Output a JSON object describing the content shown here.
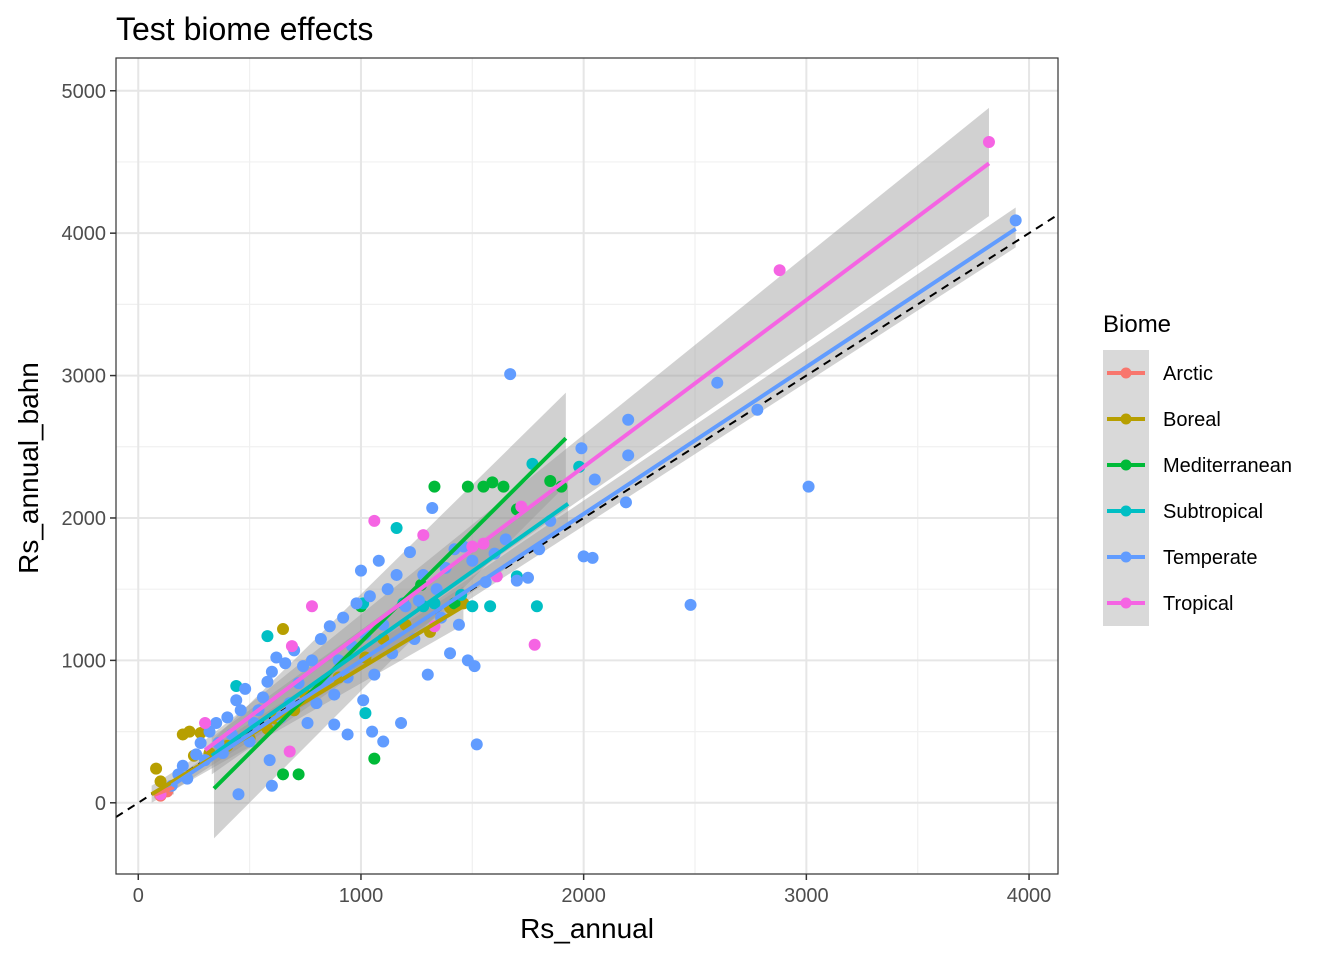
{
  "chart_data": {
    "type": "scatter",
    "title": "Test biome effects",
    "xlabel": "Rs_annual",
    "ylabel": "Rs_annual_bahn",
    "xlim": [
      -100,
      4130
    ],
    "ylim": [
      -500,
      5230
    ],
    "x_ticks": [
      0,
      1000,
      2000,
      3000,
      4000
    ],
    "y_ticks": [
      0,
      1000,
      2000,
      3000,
      4000,
      5000
    ],
    "x_tick_labels": [
      "0",
      "1000",
      "2000",
      "3000",
      "4000"
    ],
    "y_tick_labels": [
      "0",
      "1000",
      "2000",
      "3000",
      "4000",
      "5000"
    ],
    "grid": true,
    "legend": {
      "title": "Biome",
      "position": "right"
    },
    "reference_line": {
      "type": "identity",
      "style": "dashed",
      "color": "#000000"
    },
    "series": [
      {
        "name": "Arctic",
        "color": "#F8766D",
        "points": [
          [
            100,
            50
          ],
          [
            130,
            80
          ]
        ],
        "fit": {
          "x": [
            70,
            160
          ],
          "y": [
            55,
            110
          ],
          "lo": [
            30,
            60
          ],
          "hi": [
            80,
            160
          ]
        }
      },
      {
        "name": "Boreal",
        "color": "#B79F00",
        "points": [
          [
            80,
            240
          ],
          [
            100,
            150
          ],
          [
            200,
            480
          ],
          [
            230,
            500
          ],
          [
            280,
            490
          ],
          [
            320,
            350
          ],
          [
            400,
            400
          ],
          [
            500,
            450
          ],
          [
            650,
            1220
          ],
          [
            620,
            590
          ],
          [
            700,
            650
          ],
          [
            750,
            760
          ],
          [
            900,
            880
          ],
          [
            1100,
            1150
          ],
          [
            1200,
            1250
          ],
          [
            1310,
            1200
          ],
          [
            1400,
            1370
          ],
          [
            1460,
            1400
          ],
          [
            1020,
            1020
          ],
          [
            580,
            520
          ],
          [
            250,
            330
          ]
        ],
        "fit": {
          "x": [
            60,
            1460
          ],
          "y": [
            60,
            1380
          ],
          "lo": [
            0,
            1250
          ],
          "hi": [
            120,
            1520
          ]
        }
      },
      {
        "name": "Mediterranean",
        "color": "#00BA38",
        "points": [
          [
            650,
            200
          ],
          [
            720,
            200
          ],
          [
            1060,
            310
          ],
          [
            1000,
            1380
          ],
          [
            1330,
            2220
          ],
          [
            1480,
            2220
          ],
          [
            1550,
            2220
          ],
          [
            1590,
            2250
          ],
          [
            1640,
            2220
          ],
          [
            1700,
            2060
          ],
          [
            1850,
            2260
          ],
          [
            1900,
            2220
          ],
          [
            1270,
            1530
          ],
          [
            1420,
            1400
          ]
        ],
        "fit": {
          "x": [
            340,
            1920
          ],
          "y": [
            100,
            2560
          ],
          "lo": [
            -250,
            2230
          ],
          "hi": [
            450,
            2880
          ]
        }
      },
      {
        "name": "Subtropical",
        "color": "#00BFC4",
        "points": [
          [
            440,
            820
          ],
          [
            580,
            1170
          ],
          [
            1010,
            1400
          ],
          [
            1160,
            1930
          ],
          [
            1190,
            1400
          ],
          [
            1280,
            1380
          ],
          [
            1330,
            1400
          ],
          [
            1450,
            1460
          ],
          [
            1500,
            1380
          ],
          [
            1580,
            1380
          ],
          [
            1700,
            1590
          ],
          [
            1770,
            2380
          ],
          [
            1790,
            1380
          ],
          [
            1980,
            2360
          ],
          [
            1020,
            630
          ]
        ],
        "fit": {
          "x": [
            330,
            1930
          ],
          "y": [
            330,
            2100
          ],
          "lo": [
            200,
            1950
          ],
          "hi": [
            460,
            2260
          ]
        }
      },
      {
        "name": "Temperate",
        "color": "#619CFF",
        "points": [
          [
            150,
            120
          ],
          [
            180,
            200
          ],
          [
            200,
            260
          ],
          [
            220,
            170
          ],
          [
            260,
            340
          ],
          [
            280,
            420
          ],
          [
            300,
            300
          ],
          [
            320,
            500
          ],
          [
            350,
            560
          ],
          [
            360,
            420
          ],
          [
            380,
            350
          ],
          [
            400,
            600
          ],
          [
            420,
            480
          ],
          [
            440,
            720
          ],
          [
            450,
            60
          ],
          [
            460,
            650
          ],
          [
            480,
            800
          ],
          [
            500,
            430
          ],
          [
            520,
            560
          ],
          [
            540,
            650
          ],
          [
            560,
            740
          ],
          [
            580,
            850
          ],
          [
            590,
            300
          ],
          [
            600,
            920
          ],
          [
            620,
            1020
          ],
          [
            640,
            600
          ],
          [
            660,
            980
          ],
          [
            680,
            700
          ],
          [
            700,
            1070
          ],
          [
            720,
            840
          ],
          [
            740,
            960
          ],
          [
            760,
            560
          ],
          [
            780,
            1000
          ],
          [
            800,
            700
          ],
          [
            820,
            1150
          ],
          [
            840,
            860
          ],
          [
            860,
            1240
          ],
          [
            880,
            760
          ],
          [
            900,
            1000
          ],
          [
            920,
            1300
          ],
          [
            940,
            880
          ],
          [
            960,
            1100
          ],
          [
            980,
            1400
          ],
          [
            1000,
            1630
          ],
          [
            1010,
            720
          ],
          [
            1020,
            1180
          ],
          [
            1040,
            1450
          ],
          [
            1060,
            900
          ],
          [
            1080,
            1700
          ],
          [
            1100,
            1250
          ],
          [
            1120,
            1500
          ],
          [
            1140,
            1050
          ],
          [
            1160,
            1600
          ],
          [
            1180,
            560
          ],
          [
            1200,
            1380
          ],
          [
            1220,
            1760
          ],
          [
            1240,
            1150
          ],
          [
            1260,
            1420
          ],
          [
            1280,
            1600
          ],
          [
            1300,
            900
          ],
          [
            1320,
            2070
          ],
          [
            1340,
            1500
          ],
          [
            1360,
            1300
          ],
          [
            1380,
            1650
          ],
          [
            1400,
            1050
          ],
          [
            1420,
            1780
          ],
          [
            1440,
            1250
          ],
          [
            1460,
            1800
          ],
          [
            1480,
            1000
          ],
          [
            1500,
            1700
          ],
          [
            1510,
            960
          ],
          [
            1520,
            410
          ],
          [
            1560,
            1550
          ],
          [
            1600,
            1750
          ],
          [
            1650,
            1850
          ],
          [
            1670,
            3010
          ],
          [
            1700,
            1560
          ],
          [
            1750,
            1580
          ],
          [
            1800,
            1780
          ],
          [
            1850,
            1980
          ],
          [
            1990,
            2490
          ],
          [
            2000,
            1730
          ],
          [
            2040,
            1720
          ],
          [
            2050,
            2270
          ],
          [
            2190,
            2110
          ],
          [
            2200,
            2690
          ],
          [
            2200,
            2440
          ],
          [
            2480,
            1390
          ],
          [
            2600,
            2950
          ],
          [
            2780,
            2760
          ],
          [
            3010,
            2220
          ],
          [
            3940,
            4090
          ],
          [
            1100,
            430
          ],
          [
            1050,
            500
          ],
          [
            880,
            550
          ],
          [
            940,
            480
          ],
          [
            600,
            120
          ]
        ],
        "fit": {
          "x": [
            150,
            3940
          ],
          "y": [
            120,
            4030
          ],
          "lo": [
            80,
            3900
          ],
          "hi": [
            160,
            4180
          ]
        }
      },
      {
        "name": "Tropical",
        "color": "#F564E3",
        "points": [
          [
            100,
            60
          ],
          [
            300,
            560
          ],
          [
            680,
            360
          ],
          [
            690,
            1100
          ],
          [
            780,
            1380
          ],
          [
            1060,
            1980
          ],
          [
            1280,
            1880
          ],
          [
            1330,
            1240
          ],
          [
            1500,
            1800
          ],
          [
            1550,
            1820
          ],
          [
            1610,
            1590
          ],
          [
            1720,
            2080
          ],
          [
            1780,
            1110
          ],
          [
            2880,
            3740
          ],
          [
            3820,
            4640
          ]
        ],
        "fit": {
          "x": [
            300,
            3820
          ],
          "y": [
            370,
            4490
          ],
          "lo": [
            300,
            4120
          ],
          "hi": [
            440,
            4880
          ]
        }
      }
    ]
  }
}
